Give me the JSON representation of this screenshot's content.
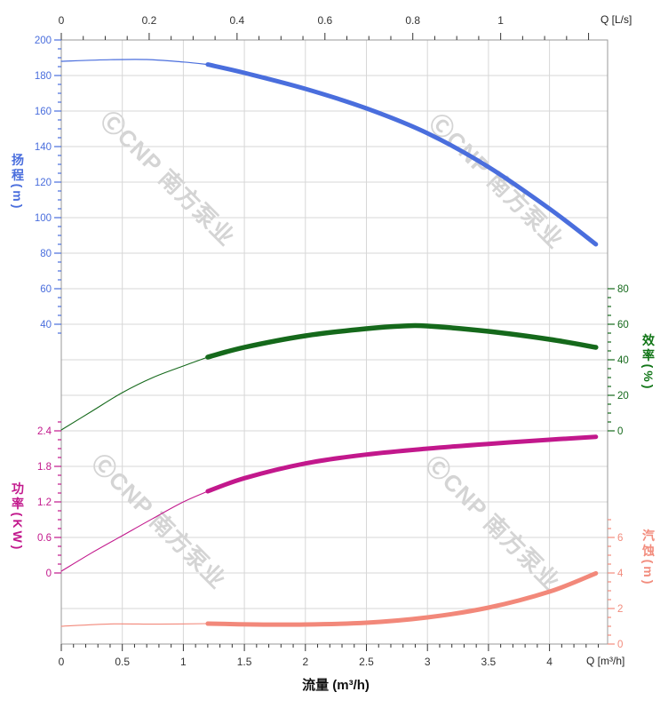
{
  "watermark": {
    "text": "ⒸCNP 南方泵业"
  },
  "colors": {
    "head": "#4a6edd",
    "efficiency": "#15691b",
    "efficiency_text": "#117517",
    "power": "#c2188c",
    "npsh": "#f2887a",
    "npsh_text": "#f28c7d",
    "grid": "#d7d7d7",
    "border": "#9a9a9a",
    "tick_dark": "#333333"
  },
  "axes": {
    "x_top": {
      "end_label": "Q [L/s]",
      "tick_labels": [
        "0",
        "0.2",
        "0.4",
        "0.6",
        "0.8",
        "1"
      ],
      "major_step": 0.2,
      "minor_step": 0.05,
      "max": 1.24,
      "unit": "L/s"
    },
    "x_bottom": {
      "label": "流量 (m³/h)",
      "end_label": "Q [m³/h]",
      "tick_labels": [
        "0",
        "0.5",
        "1",
        "1.5",
        "2",
        "2.5",
        "3",
        "3.5",
        "4"
      ],
      "major_step": 0.5,
      "minor_step": 0.1,
      "max": 4.45,
      "unit": "m³/h"
    },
    "y_head": {
      "label": "扬程(m)",
      "tick_labels": [
        "200",
        "180",
        "160",
        "140",
        "120",
        "100",
        "80",
        "60",
        "40"
      ],
      "minor_step": 5,
      "minor_min": 35,
      "minor_max": 200,
      "unit": "m"
    },
    "y_eff": {
      "label": "效率(%)",
      "tick_labels": [
        "80",
        "60",
        "40",
        "20",
        "0"
      ],
      "minor_step": 5,
      "minor_min": 0,
      "minor_max": 80,
      "unit": "%"
    },
    "y_power": {
      "label": "功率(KW)",
      "tick_labels": [
        "2.4",
        "1.8",
        "1.2",
        "0.6",
        "0"
      ],
      "minor_step": 0.15,
      "minor_min": 0,
      "minor_max": 2.55,
      "unit": "KW"
    },
    "y_npsh": {
      "label": "汽蚀(m)",
      "tick_labels": [
        "6",
        "4",
        "2",
        "0"
      ],
      "minor_step": 0.5,
      "minor_min": 0,
      "minor_max": 7,
      "unit": "m"
    }
  },
  "chart_data": {
    "type": "line",
    "x_unit": "m³/h",
    "note_thin_vs_thick": "thin segment = extrapolated range below Q=1.2 m³/h, thick segment = recommended operating range 1.2-4.38 m³/h",
    "series": [
      {
        "id": "head",
        "name": "扬程",
        "unit": "m",
        "scale": "head",
        "color_key": "head",
        "thin_width": 1.2,
        "thick_width": 5,
        "thin": [
          [
            0,
            188
          ],
          [
            0.4,
            188.9
          ],
          [
            0.7,
            189
          ],
          [
            1.0,
            187.6
          ],
          [
            1.2,
            186.2
          ]
        ],
        "thick": [
          [
            1.2,
            186.2
          ],
          [
            1.5,
            181.5
          ],
          [
            2.0,
            172.5
          ],
          [
            2.5,
            161.5
          ],
          [
            3.0,
            147.5
          ],
          [
            3.5,
            128.5
          ],
          [
            4.0,
            105
          ],
          [
            4.38,
            85
          ]
        ]
      },
      {
        "id": "efficiency",
        "name": "效率",
        "unit": "%",
        "scale": "eff",
        "color_key": "efficiency",
        "thin_width": 1.1,
        "thick_width": 5.5,
        "thin": [
          [
            0,
            0.5
          ],
          [
            0.25,
            11
          ],
          [
            0.5,
            21.5
          ],
          [
            0.75,
            30
          ],
          [
            1.0,
            36.5
          ],
          [
            1.2,
            41.5
          ]
        ],
        "thick": [
          [
            1.2,
            41.5
          ],
          [
            1.5,
            47
          ],
          [
            2.0,
            53.5
          ],
          [
            2.5,
            57.5
          ],
          [
            2.8,
            59
          ],
          [
            3.0,
            59
          ],
          [
            3.5,
            56
          ],
          [
            4.0,
            51.5
          ],
          [
            4.38,
            47
          ]
        ]
      },
      {
        "id": "power",
        "name": "功率",
        "unit": "KW",
        "scale": "power",
        "color_key": "power",
        "thin_width": 1.1,
        "thick_width": 5,
        "thin": [
          [
            0,
            0.03
          ],
          [
            0.25,
            0.34
          ],
          [
            0.5,
            0.63
          ],
          [
            0.75,
            0.92
          ],
          [
            1.0,
            1.2
          ],
          [
            1.2,
            1.38
          ]
        ],
        "thick": [
          [
            1.2,
            1.38
          ],
          [
            1.5,
            1.6
          ],
          [
            2.0,
            1.85
          ],
          [
            2.5,
            2.0
          ],
          [
            3.0,
            2.1
          ],
          [
            3.5,
            2.18
          ],
          [
            4.0,
            2.25
          ],
          [
            4.38,
            2.3
          ]
        ]
      },
      {
        "id": "npsh",
        "name": "汽蚀",
        "unit": "m",
        "scale": "npsh",
        "color_key": "npsh",
        "thin_width": 1.1,
        "thick_width": 5,
        "thin": [
          [
            0,
            1.0
          ],
          [
            0.4,
            1.13
          ],
          [
            0.8,
            1.12
          ],
          [
            1.2,
            1.15
          ]
        ],
        "thick": [
          [
            1.2,
            1.15
          ],
          [
            1.6,
            1.1
          ],
          [
            2.0,
            1.1
          ],
          [
            2.5,
            1.2
          ],
          [
            3.0,
            1.5
          ],
          [
            3.5,
            2.05
          ],
          [
            4.0,
            2.95
          ],
          [
            4.38,
            3.98
          ]
        ]
      }
    ]
  }
}
